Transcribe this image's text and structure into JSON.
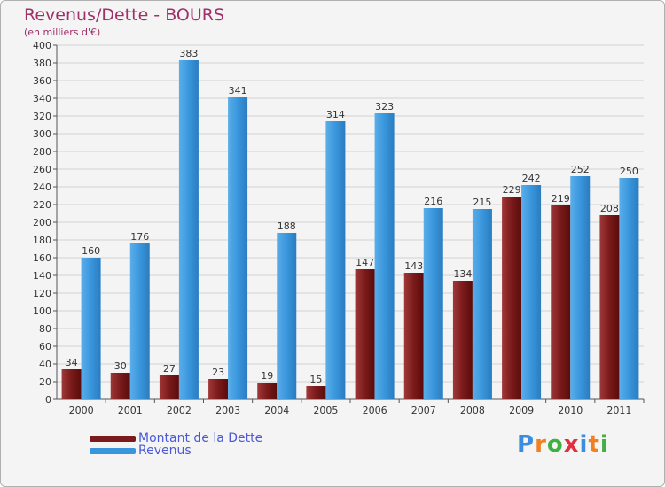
{
  "header": {
    "title": "Revenus/Dette - BOURS",
    "subtitle": "(en milliers d'€)"
  },
  "colors": {
    "dette": "#7a1a1a",
    "revenus": "#3a96dc",
    "title": "#a0306a",
    "legend_text": "#4a5ad8"
  },
  "chart_data": {
    "type": "bar",
    "title": "Revenus/Dette - BOURS",
    "subtitle": "(en milliers d'€)",
    "categories": [
      "2000",
      "2001",
      "2002",
      "2003",
      "2004",
      "2005",
      "2006",
      "2007",
      "2008",
      "2009",
      "2010",
      "2011"
    ],
    "series": [
      {
        "name": "Montant de la Dette",
        "values": [
          34,
          30,
          27,
          23,
          19,
          15,
          147,
          143,
          134,
          229,
          219,
          208
        ]
      },
      {
        "name": "Revenus",
        "values": [
          160,
          176,
          383,
          341,
          188,
          314,
          323,
          216,
          215,
          242,
          252,
          250
        ]
      }
    ],
    "ylim": [
      0,
      400
    ],
    "ytick_step": 20,
    "grid": true,
    "legend_position": "bottom-left"
  },
  "logo": {
    "letters": [
      "P",
      "r",
      "o",
      "x",
      "i",
      "t",
      "i"
    ],
    "colors": [
      "#3a8ee0",
      "#f08020",
      "#40b040",
      "#e03040",
      "#3a8ee0",
      "#f08020",
      "#40b040"
    ]
  }
}
